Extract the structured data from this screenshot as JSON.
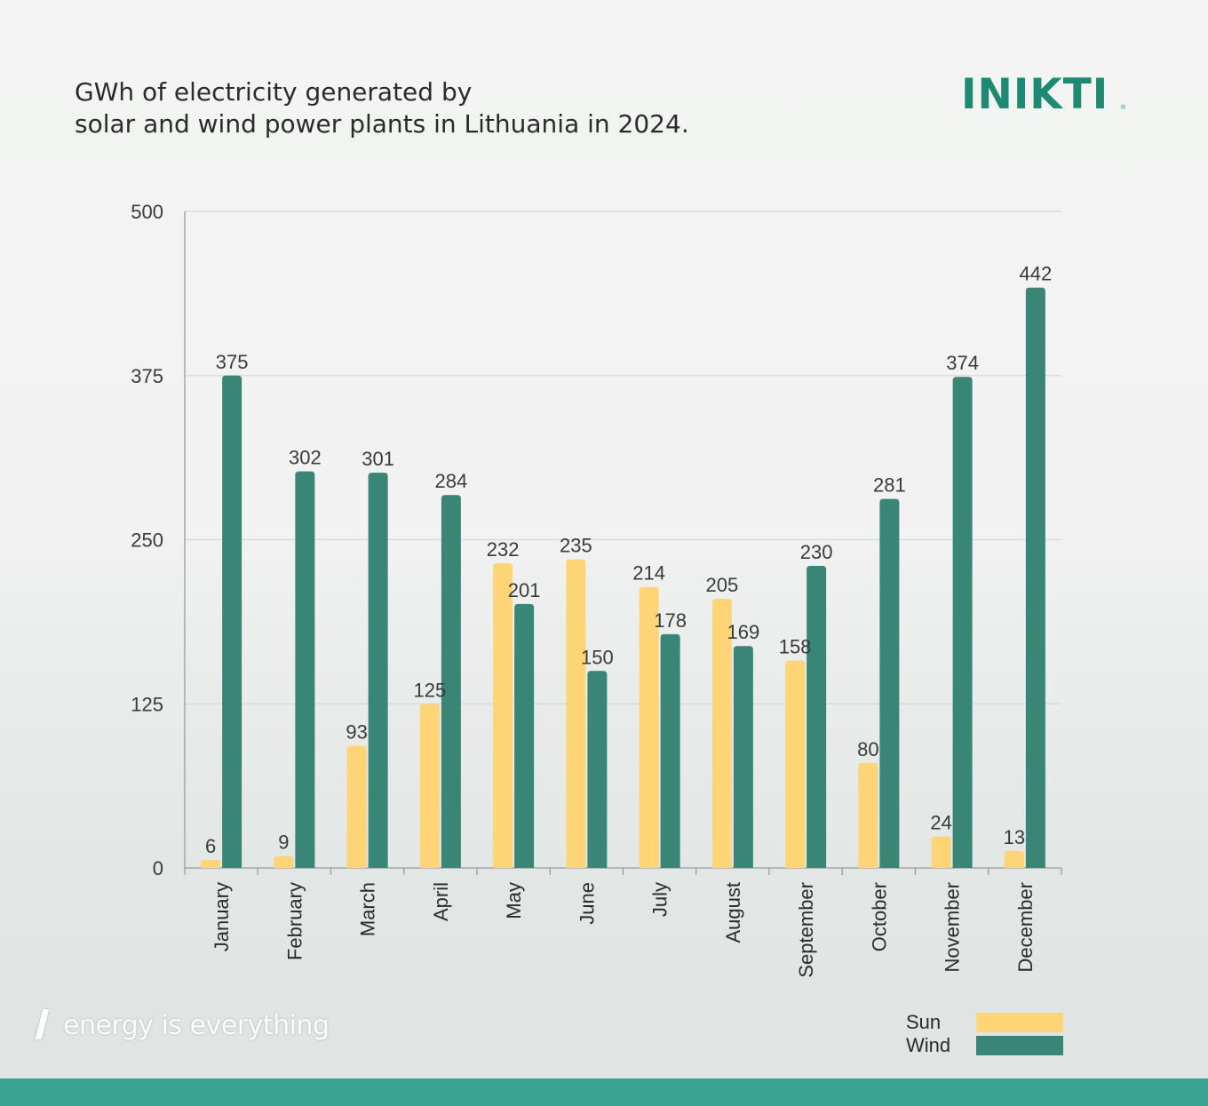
{
  "header": {
    "title_line1": "GWh of electricity generated by",
    "title_line2": "solar and wind power plants in Lithuania in 2024.",
    "logo_text": "INIKTI",
    "logo_reg": "®"
  },
  "footer": {
    "tagline": "energy is everything"
  },
  "colors": {
    "sun": "#fdd576",
    "wind": "#3a8676",
    "brand": "#1e8a74",
    "grid": "#d6d8d6"
  },
  "chart_data": {
    "type": "bar",
    "title": "GWh of electricity generated by solar and wind power plants in Lithuania in 2024.",
    "xlabel": "",
    "ylabel": "",
    "ylim": [
      0,
      500
    ],
    "yticks": [
      0,
      125,
      250,
      375,
      500
    ],
    "grid": true,
    "legend_position": "bottom-right",
    "categories": [
      "January",
      "February",
      "March",
      "April",
      "May",
      "June",
      "July",
      "August",
      "September",
      "October",
      "November",
      "December"
    ],
    "series": [
      {
        "name": "Sun",
        "values": [
          6,
          9,
          93,
          125,
          232,
          235,
          214,
          205,
          158,
          80,
          24,
          13
        ]
      },
      {
        "name": "Wind",
        "values": [
          375,
          302,
          301,
          284,
          201,
          150,
          178,
          169,
          230,
          281,
          374,
          442
        ]
      }
    ]
  }
}
